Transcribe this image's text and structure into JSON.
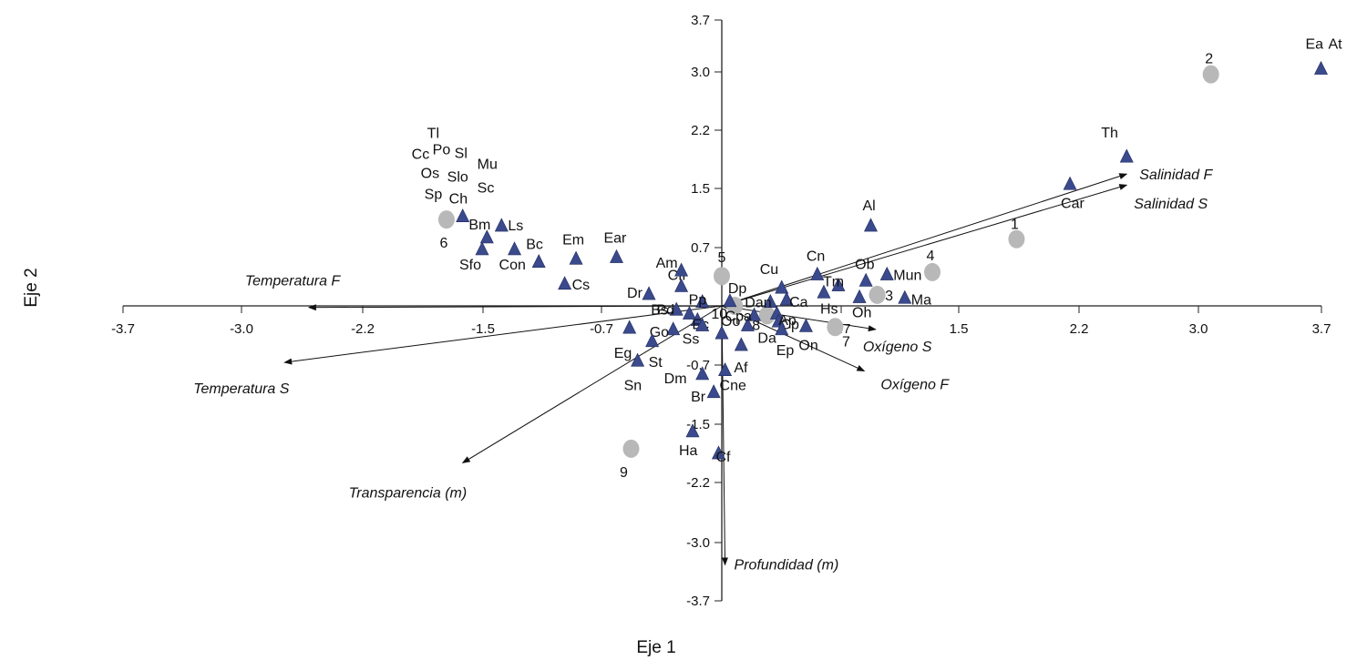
{
  "chart_data": {
    "type": "scatter",
    "subtype": "biplot",
    "xlabel": "Eje 1",
    "ylabel": "Eje 2",
    "xlim": [
      -3.7,
      3.7
    ],
    "ylim": [
      -3.7,
      3.7
    ],
    "x_ticks": [
      "-3.7",
      "-3.0",
      "-2.2",
      "-1.5",
      "-0.7",
      "0.7",
      "1.5",
      "2.2",
      "3.0",
      "3.7"
    ],
    "y_ticks": [
      "3.7",
      "3.0",
      "2.2",
      "1.5",
      "0.7",
      "-0.7",
      "-1.5",
      "-2.2",
      "-3.0",
      "-3.7"
    ],
    "grid": false,
    "colors": {
      "species": "#3b4a8c",
      "sites": "#b8b8b8",
      "axis": "#222222"
    },
    "vectors": [
      {
        "label": "Salinidad F",
        "x": 2.5,
        "y": 1.68
      },
      {
        "label": "Salinidad S",
        "x": 2.5,
        "y": 1.54
      },
      {
        "label": "Temperatura F",
        "x": -2.55,
        "y": -0.02
      },
      {
        "label": "Temperatura S",
        "x": -2.7,
        "y": -0.72
      },
      {
        "label": "Oxígeno S",
        "x": 0.95,
        "y": -0.3
      },
      {
        "label": "Oxígeno F",
        "x": 0.88,
        "y": -0.83
      },
      {
        "label": "Transparencia (m)",
        "x": -1.6,
        "y": -2.0
      },
      {
        "label": "Profundidad (m)",
        "x": 0.02,
        "y": -3.3
      }
    ],
    "sites": [
      {
        "label": "1",
        "x": 1.82,
        "y": 0.85
      },
      {
        "label": "2",
        "x": 3.02,
        "y": 2.95
      },
      {
        "label": "3",
        "x": 0.96,
        "y": 0.14
      },
      {
        "label": "4",
        "x": 1.3,
        "y": 0.43
      },
      {
        "label": "5",
        "x": 0.0,
        "y": 0.38
      },
      {
        "label": "6",
        "x": -1.7,
        "y": 1.1
      },
      {
        "label": "7",
        "x": 0.7,
        "y": -0.27
      },
      {
        "label": "8",
        "x": 0.28,
        "y": -0.12
      },
      {
        "label": "9",
        "x": -0.56,
        "y": -1.82
      },
      {
        "label": "10",
        "x": 0.08,
        "y": 0.0
      }
    ],
    "species": [
      {
        "label": "Ea",
        "x": 3.7,
        "y": 3.02
      },
      {
        "label": "At",
        "x": 3.7,
        "y": 3.02,
        "marker": false
      },
      {
        "label": "Th",
        "x": 2.5,
        "y": 1.9
      },
      {
        "label": "Car",
        "x": 2.15,
        "y": 1.55
      },
      {
        "label": "Al",
        "x": 0.92,
        "y": 1.02
      },
      {
        "label": "Mun",
        "x": 1.02,
        "y": 0.4
      },
      {
        "label": "Ob",
        "x": 0.89,
        "y": 0.32
      },
      {
        "label": "Ma",
        "x": 1.13,
        "y": 0.1
      },
      {
        "label": "Oh",
        "x": 0.85,
        "y": 0.11
      },
      {
        "label": "Tm",
        "x": 0.72,
        "y": 0.26
      },
      {
        "label": "Cn",
        "x": 0.59,
        "y": 0.4
      },
      {
        "label": "Hs",
        "x": 0.63,
        "y": 0.17
      },
      {
        "label": "Cu",
        "x": 0.37,
        "y": 0.23
      },
      {
        "label": "Dan",
        "x": 0.3,
        "y": 0.05
      },
      {
        "label": "Ca",
        "x": 0.4,
        "y": 0.08
      },
      {
        "label": "Cp",
        "x": 0.34,
        "y": -0.1
      },
      {
        "label": "Ap",
        "x": 0.35,
        "y": -0.2
      },
      {
        "label": "Ep",
        "x": 0.37,
        "y": -0.3
      },
      {
        "label": "On",
        "x": 0.52,
        "y": -0.26
      },
      {
        "label": "Da",
        "x": 0.16,
        "y": -0.25
      },
      {
        "label": "Cpa",
        "x": 0.2,
        "y": -0.12
      },
      {
        "label": "Oo",
        "x": 0.0,
        "y": -0.35
      },
      {
        "label": "Af",
        "x": 0.12,
        "y": -0.5
      },
      {
        "label": "Dp",
        "x": 0.05,
        "y": 0.06
      },
      {
        "label": "Pp",
        "x": -0.12,
        "y": 0.05
      },
      {
        "label": "Bs",
        "x": -0.28,
        "y": -0.05
      },
      {
        "label": "Ec",
        "x": -0.15,
        "y": -0.18
      },
      {
        "label": "Pd",
        "x": -0.2,
        "y": -0.1
      },
      {
        "label": "Go",
        "x": -0.3,
        "y": -0.3
      },
      {
        "label": "Ss",
        "x": -0.12,
        "y": -0.25
      },
      {
        "label": "Cfi",
        "x": -0.25,
        "y": 0.25
      },
      {
        "label": "Am",
        "x": -0.25,
        "y": 0.45
      },
      {
        "label": "Dr",
        "x": -0.45,
        "y": 0.15
      },
      {
        "label": "Eg",
        "x": -0.57,
        "y": -0.28
      },
      {
        "label": "St",
        "x": -0.43,
        "y": -0.45
      },
      {
        "label": "Sn",
        "x": -0.52,
        "y": -0.7
      },
      {
        "label": "Dm",
        "x": -0.12,
        "y": -0.87
      },
      {
        "label": "Br",
        "x": -0.05,
        "y": -1.1
      },
      {
        "label": "Cne",
        "x": 0.02,
        "y": -0.82
      },
      {
        "label": "Ha",
        "x": -0.18,
        "y": -1.6
      },
      {
        "label": "Cf",
        "x": -0.02,
        "y": -1.88
      },
      {
        "label": "Ear",
        "x": -0.65,
        "y": 0.62
      },
      {
        "label": "Em",
        "x": -0.9,
        "y": 0.6
      },
      {
        "label": "Cs",
        "x": -0.97,
        "y": 0.28
      },
      {
        "label": "Bc",
        "x": -1.13,
        "y": 0.56
      },
      {
        "label": "Con",
        "x": -1.28,
        "y": 0.72
      },
      {
        "label": "Sfo",
        "x": -1.48,
        "y": 0.72
      },
      {
        "label": "Bm",
        "x": -1.45,
        "y": 0.87
      },
      {
        "label": "Ls",
        "x": -1.36,
        "y": 1.02
      },
      {
        "label": "Ch",
        "x": -1.6,
        "y": 1.14
      },
      {
        "label": "Tl",
        "marker": false
      },
      {
        "label": "Cc",
        "marker": false
      },
      {
        "label": "Po",
        "marker": false
      },
      {
        "label": "Sl",
        "marker": false
      },
      {
        "label": "Mu",
        "marker": false
      },
      {
        "label": "Os",
        "marker": false
      },
      {
        "label": "Slo",
        "marker": false
      },
      {
        "label": "Sp",
        "marker": false
      },
      {
        "label": "Sc",
        "marker": false
      }
    ]
  }
}
